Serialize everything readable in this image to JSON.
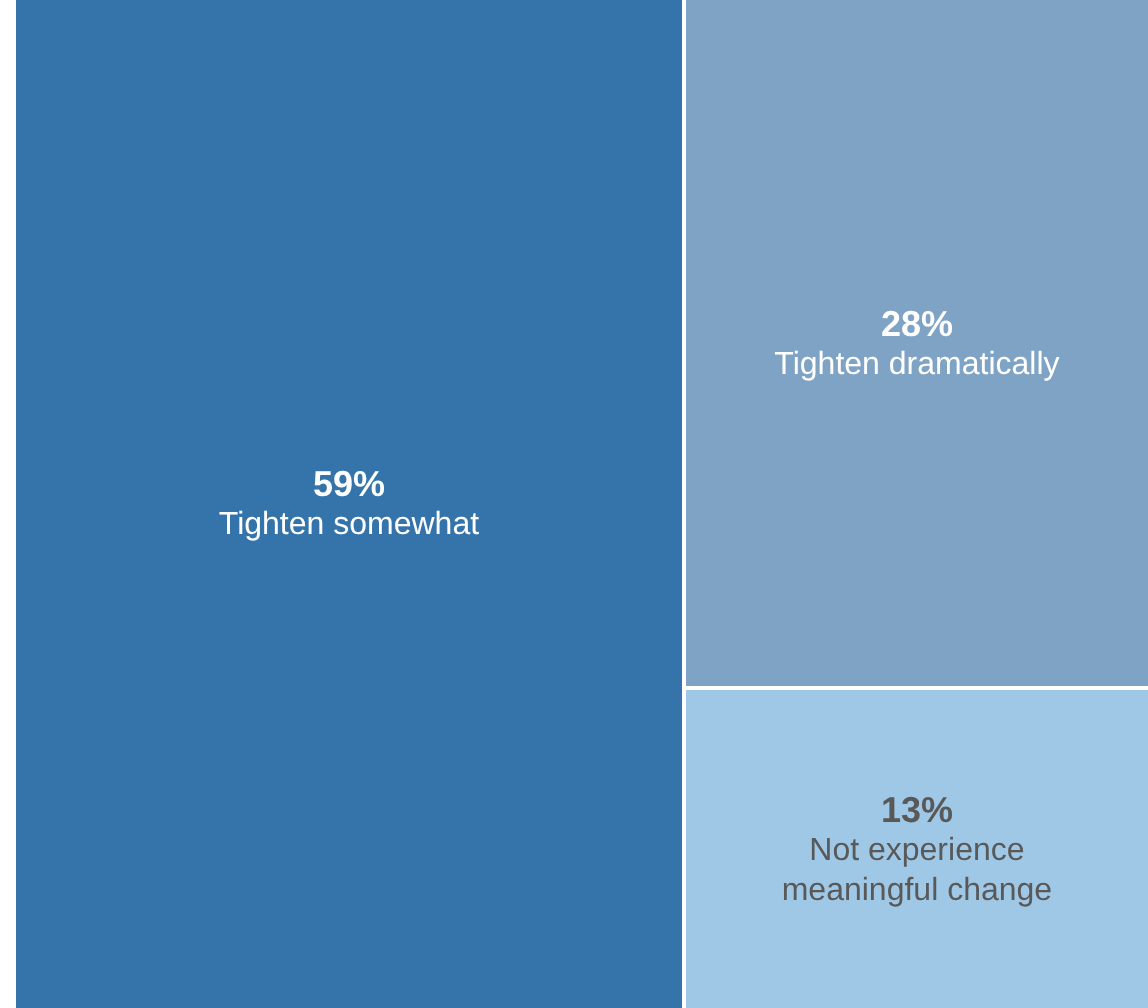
{
  "chart_data": {
    "type": "other",
    "categories": [
      "Tighten somewhat",
      "Tighten dramatically",
      "Not experience meaningful change"
    ],
    "values": [
      59,
      28,
      13
    ],
    "value_labels": [
      "59%",
      "28%",
      "13%"
    ],
    "colors": [
      "#3474aa",
      "#7fa3c4",
      "#9fc8e6"
    ]
  }
}
